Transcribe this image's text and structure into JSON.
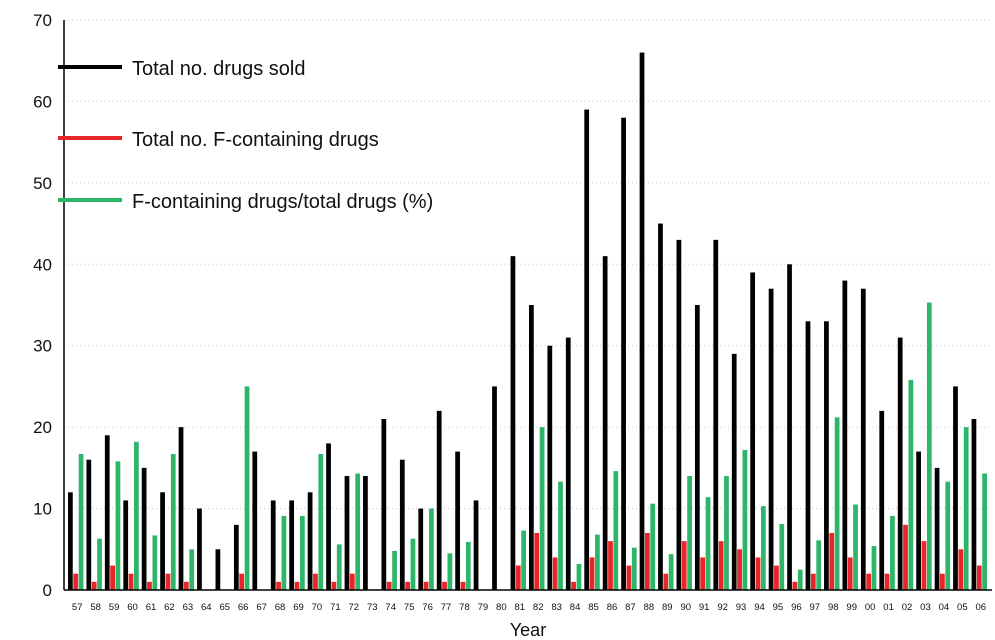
{
  "chart_data": {
    "type": "bar",
    "xlabel": "Year",
    "ylabel": "",
    "ylim": [
      0,
      70
    ],
    "yticks": [
      0,
      10,
      20,
      30,
      40,
      50,
      60,
      70
    ],
    "grid": "horizontal dotted",
    "legend_position": "top-left",
    "categories": [
      "57",
      "58",
      "59",
      "60",
      "61",
      "62",
      "63",
      "64",
      "65",
      "66",
      "67",
      "68",
      "69",
      "70",
      "71",
      "72",
      "73",
      "74",
      "75",
      "76",
      "77",
      "78",
      "79",
      "80",
      "81",
      "82",
      "83",
      "84",
      "85",
      "86",
      "87",
      "88",
      "89",
      "90",
      "91",
      "92",
      "93",
      "94",
      "95",
      "96",
      "97",
      "98",
      "99",
      "00",
      "01",
      "02",
      "03",
      "04",
      "05",
      "06"
    ],
    "series": [
      {
        "name": "Total no. drugs sold",
        "color": "#000000",
        "values": [
          12,
          16,
          19,
          11,
          15,
          12,
          20,
          10,
          5,
          8,
          17,
          11,
          11,
          12,
          18,
          14,
          14,
          21,
          16,
          10,
          22,
          17,
          11,
          25,
          41,
          35,
          30,
          31,
          59,
          41,
          58,
          66,
          45,
          43,
          35,
          43,
          29,
          39,
          37,
          40,
          33,
          33,
          38,
          37,
          22,
          31,
          17,
          15,
          25,
          21
        ]
      },
      {
        "name": "Total no. F-containing drugs",
        "color": "#e8262a",
        "values": [
          2,
          1,
          3,
          2,
          1,
          2,
          1,
          0,
          0,
          2,
          0,
          1,
          1,
          2,
          1,
          2,
          0,
          1,
          1,
          1,
          1,
          1,
          0,
          0,
          3,
          7,
          4,
          1,
          4,
          6,
          3,
          7,
          2,
          6,
          4,
          6,
          5,
          4,
          3,
          1,
          2,
          7,
          4,
          2,
          2,
          8,
          6,
          2,
          5,
          3
        ]
      },
      {
        "name": "F-containing drugs/total drugs (%)",
        "color": "#2db56a",
        "values": [
          16.7,
          6.3,
          15.8,
          18.2,
          6.7,
          16.7,
          5,
          0,
          0,
          25,
          0,
          9.1,
          9.1,
          16.7,
          5.6,
          14.3,
          0,
          4.8,
          6.3,
          10,
          4.5,
          5.9,
          0,
          0,
          7.3,
          20,
          13.3,
          3.2,
          6.8,
          14.6,
          5.2,
          10.6,
          4.4,
          14,
          11.4,
          14,
          17.2,
          10.3,
          8.1,
          2.5,
          6.1,
          21.2,
          10.5,
          5.4,
          9.1,
          25.8,
          35.3,
          13.3,
          20,
          14.3
        ]
      }
    ]
  }
}
